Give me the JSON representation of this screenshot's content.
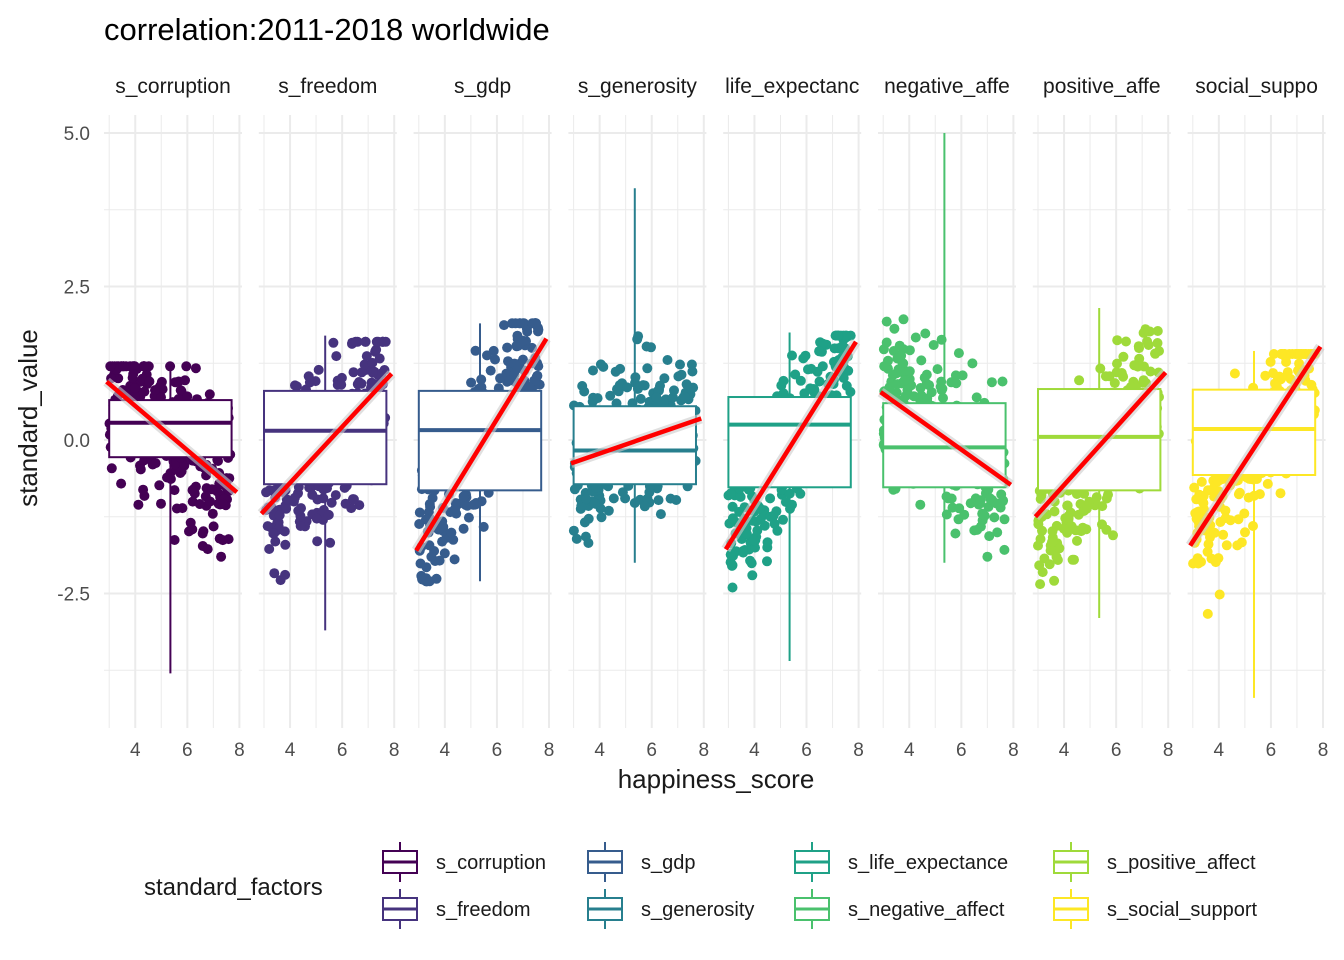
{
  "chart_data": {
    "type": "scatter",
    "title": "correlation:2011-2018 worldwide",
    "xlabel": "happiness_score",
    "ylabel": "standard_value",
    "xlim": [
      2.8,
      8.1
    ],
    "ylim": [
      -4.35,
      5.25
    ],
    "x_ticks": [
      "4",
      "6",
      "8"
    ],
    "x_tick_values": [
      4,
      6,
      8
    ],
    "y_ticks": [
      "5.0",
      "2.5",
      "0.0",
      "-2.5"
    ],
    "y_tick_values": [
      5.0,
      2.5,
      0.0,
      -2.5
    ],
    "grid": true,
    "legend": {
      "title": "standard_factors",
      "placement": "bottom",
      "items": [
        "s_corruption",
        "s_freedom",
        "s_gdp",
        "s_generosity",
        "s_life_expectance",
        "s_negative_affect",
        "s_positive_affect",
        "s_social_support"
      ]
    },
    "smooth_line_color": "#ff0000",
    "facets": [
      {
        "label": "s_corruption",
        "strip": "s_corruption",
        "color": "#440154",
        "box": {
          "q1": -0.28,
          "median": 0.28,
          "q3": 0.65,
          "whisker_low": -3.8,
          "whisker_high": 1.15
        },
        "trend": {
          "x_start": 2.9,
          "y_start": 0.95,
          "x_end": 7.9,
          "y_end": -0.85
        },
        "cloud": {
          "y_low": -1.9,
          "y_high": 1.2
        }
      },
      {
        "label": "s_freedom",
        "strip": "s_freedom",
        "color": "#46337e",
        "box": {
          "q1": -0.72,
          "median": 0.15,
          "q3": 0.8,
          "whisker_low": -3.1,
          "whisker_high": 1.7
        },
        "trend": {
          "x_start": 2.9,
          "y_start": -1.2,
          "x_end": 7.9,
          "y_end": 1.08
        },
        "cloud": {
          "y_low": -2.6,
          "y_high": 1.6
        }
      },
      {
        "label": "s_gdp",
        "strip": "s_gdp",
        "color": "#365c8d",
        "box": {
          "q1": -0.82,
          "median": 0.16,
          "q3": 0.8,
          "whisker_low": -2.3,
          "whisker_high": 1.9
        },
        "trend": {
          "x_start": 2.9,
          "y_start": -1.8,
          "x_end": 7.9,
          "y_end": 1.65
        },
        "cloud": {
          "y_low": -2.3,
          "y_high": 1.9
        }
      },
      {
        "label": "s_generosity",
        "strip": "s_generosity",
        "color": "#277f8e",
        "box": {
          "q1": -0.72,
          "median": -0.17,
          "q3": 0.55,
          "whisker_low": -2.0,
          "whisker_high": 4.1
        },
        "trend": {
          "x_start": 2.9,
          "y_start": -0.38,
          "x_end": 7.9,
          "y_end": 0.35
        },
        "cloud": {
          "y_low": -1.9,
          "y_high": 2.4
        }
      },
      {
        "label": "s_life_expectance",
        "strip": "life_expectanc",
        "color": "#1fa187",
        "box": {
          "q1": -0.77,
          "median": 0.25,
          "q3": 0.7,
          "whisker_low": -3.6,
          "whisker_high": 1.75
        },
        "trend": {
          "x_start": 2.9,
          "y_start": -1.78,
          "x_end": 7.9,
          "y_end": 1.6
        },
        "cloud": {
          "y_low": -2.8,
          "y_high": 1.7
        }
      },
      {
        "label": "s_negative_affect",
        "strip": "negative_affe",
        "color": "#4ac16d",
        "box": {
          "q1": -0.77,
          "median": -0.12,
          "q3": 0.6,
          "whisker_low": -2.0,
          "whisker_high": 5.0
        },
        "trend": {
          "x_start": 2.9,
          "y_start": 0.78,
          "x_end": 7.9,
          "y_end": -0.73
        },
        "cloud": {
          "y_low": -1.9,
          "y_high": 2.5
        }
      },
      {
        "label": "s_positive_affect",
        "strip": "positive_affe",
        "color": "#9fda3a",
        "box": {
          "q1": -0.82,
          "median": 0.05,
          "q3": 0.83,
          "whisker_low": -2.9,
          "whisker_high": 2.15
        },
        "trend": {
          "x_start": 2.9,
          "y_start": -1.25,
          "x_end": 7.9,
          "y_end": 1.1
        },
        "cloud": {
          "y_low": -2.6,
          "y_high": 2.0
        }
      },
      {
        "label": "s_social_support",
        "strip": "social_suppo",
        "color": "#fde725",
        "box": {
          "q1": -0.57,
          "median": 0.18,
          "q3": 0.82,
          "whisker_low": -4.2,
          "whisker_high": 1.45
        },
        "trend": {
          "x_start": 2.9,
          "y_start": -1.72,
          "x_end": 7.9,
          "y_end": 1.52
        },
        "cloud": {
          "y_low": -3.4,
          "y_high": 1.4
        }
      }
    ]
  }
}
